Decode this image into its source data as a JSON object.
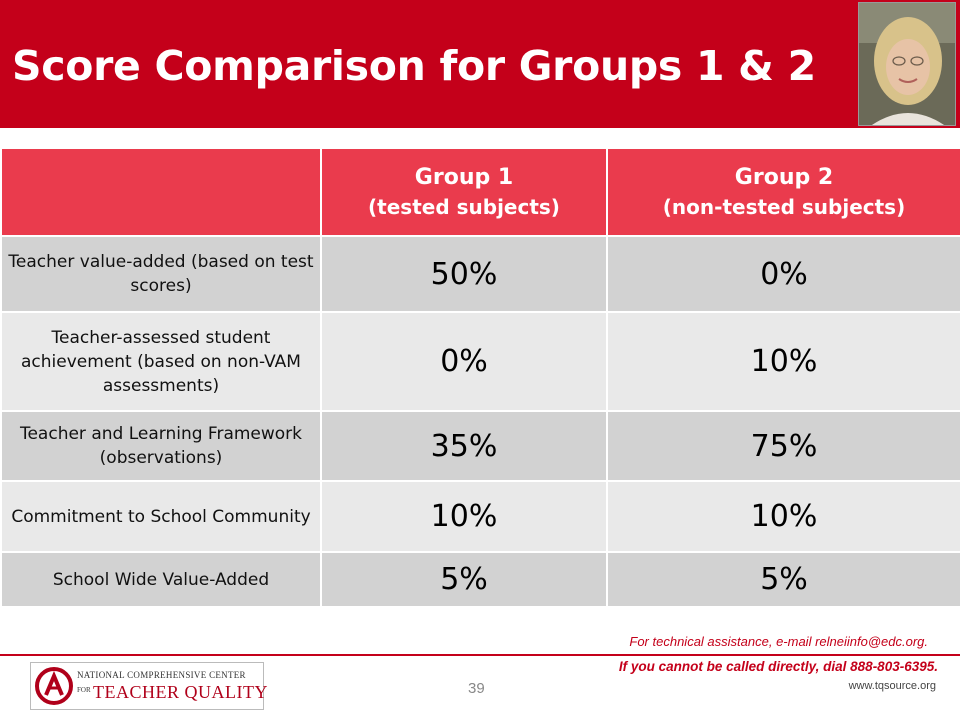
{
  "slide": {
    "title": "Score Comparison for Groups 1 & 2",
    "page_number": "39"
  },
  "colors": {
    "header_bg": "#c4001a",
    "table_header_bg": "#ea3b4d",
    "row_dark": "#d2d2d2",
    "row_light": "#e9e9e9",
    "accent_text": "#c4001a"
  },
  "table": {
    "columns": [
      {
        "main": "Group 1",
        "sub": "(tested subjects)"
      },
      {
        "main": "Group 2",
        "sub": "(non-tested subjects)"
      }
    ],
    "rows": [
      {
        "label": "Teacher value-added (based on test scores)",
        "group1": "50%",
        "group2": "0%"
      },
      {
        "label": "Teacher-assessed student achievement (based on non-VAM assessments)",
        "group1": "0%",
        "group2": "10%"
      },
      {
        "label": "Teacher and Learning Framework (observations)",
        "group1": "35%",
        "group2": "75%"
      },
      {
        "label": "Commitment to School Community",
        "group1": "10%",
        "group2": "10%"
      },
      {
        "label": "School Wide Value-Added",
        "group1": "5%",
        "group2": "5%"
      }
    ]
  },
  "footer": {
    "assistance": "For technical assistance, e-mail relneiinfo@edc.org.",
    "dial": "If you cannot be called directly, dial 888-803-6395.",
    "website": "www.tqsource.org",
    "logo_line1": "NATIONAL COMPREHENSIVE CENTER",
    "logo_for": "FOR",
    "logo_line2": "TEACHER QUALITY"
  },
  "icons": {
    "photo": "presenter-photo",
    "logo_mark": "nccqt-logo-mark"
  }
}
